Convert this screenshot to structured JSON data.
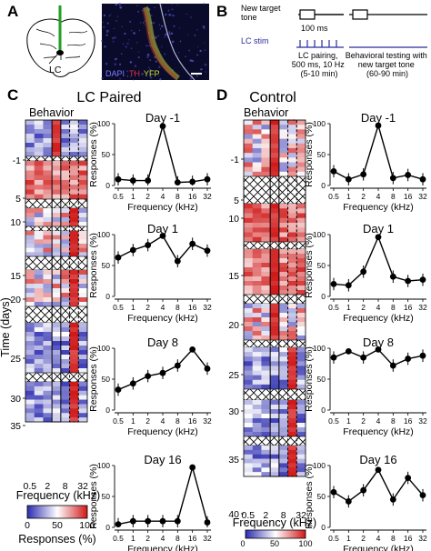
{
  "panel_labels": [
    "A",
    "B",
    "C",
    "D"
  ],
  "panel_a": {
    "region_label": "LC",
    "stain_labels": [
      "DAPI",
      "TH",
      "YFP"
    ],
    "stain_colors": [
      "#6a6aff",
      "#e83030",
      "#c8e030"
    ]
  },
  "panel_b": {
    "target_tone_label": "New target\ntone",
    "duration_label": "100 ms",
    "stim_label": "LC stim",
    "pairing_label": "LC pairing,\n500 ms, 10 Hz\n(5-10 min)",
    "testing_label": "Behavioral testing with\nnew target tone\n(60-90 min)",
    "stim_color": "#2a2a9c"
  },
  "panel_c": {
    "title": "LC Paired",
    "heatmap_label": "Behavior",
    "y_axis_label": "Time (days)",
    "y_ticks": [
      "-1",
      "5",
      "10",
      "15",
      "20",
      "25",
      "30",
      "35"
    ],
    "x_ticks": [
      "0.5",
      "2",
      "8",
      "32"
    ],
    "x_axis_label": "Frequency (kHz)",
    "colorbar_ticks": [
      "0",
      "50",
      "100"
    ],
    "colorbar_label": "Responses (%)"
  },
  "panel_d": {
    "title": "Control",
    "heatmap_label": "Behavior",
    "y_ticks": [
      "-1",
      "5",
      "10",
      "15",
      "20",
      "25",
      "30",
      "35",
      "40"
    ],
    "x_ticks": [
      "0.5",
      "2",
      "8",
      "32"
    ],
    "x_axis_label": "Frequency (kHz)",
    "colorbar_ticks": [
      "0",
      "50",
      "100"
    ],
    "colorbar_label": "Responses (%)"
  },
  "chart_data": [
    {
      "type": "line",
      "panel": "C",
      "title": "Day -1",
      "xlabel": "Frequency (kHz)",
      "ylabel": "Responses (%)",
      "categories": [
        "0.5",
        "1",
        "2",
        "4",
        "8",
        "16",
        "32"
      ],
      "values": [
        10,
        8,
        8,
        96,
        5,
        6,
        10
      ],
      "ylim": [
        0,
        100
      ],
      "y_ticks": [
        "0",
        "50",
        "100"
      ]
    },
    {
      "type": "line",
      "panel": "C",
      "title": "Day 1",
      "xlabel": "Frequency (kHz)",
      "ylabel": "Responses (%)",
      "categories": [
        "0.5",
        "1",
        "2",
        "4",
        "8",
        "16",
        "32"
      ],
      "values": [
        63,
        75,
        83,
        98,
        57,
        85,
        74
      ],
      "ylim": [
        0,
        100
      ],
      "y_ticks": [
        "0",
        "50",
        "100"
      ]
    },
    {
      "type": "line",
      "panel": "C",
      "title": "Day 8",
      "xlabel": "Frequency (kHz)",
      "ylabel": "Responses (%)",
      "categories": [
        "0.5",
        "1",
        "2",
        "4",
        "8",
        "16",
        "32"
      ],
      "values": [
        33,
        43,
        55,
        60,
        72,
        98,
        67
      ],
      "ylim": [
        0,
        100
      ],
      "y_ticks": [
        "0",
        "50",
        "100"
      ]
    },
    {
      "type": "line",
      "panel": "C",
      "title": "Day 16",
      "xlabel": "Frequency (kHz)",
      "ylabel": "Responses (%)",
      "categories": [
        "0.5",
        "1",
        "2",
        "4",
        "8",
        "16",
        "32"
      ],
      "values": [
        5,
        10,
        10,
        10,
        10,
        97,
        8
      ],
      "ylim": [
        0,
        100
      ],
      "y_ticks": [
        "0",
        "50",
        "100"
      ]
    },
    {
      "type": "line",
      "panel": "D",
      "title": "Day -1",
      "xlabel": "Frequency (kHz)",
      "ylabel": "Responses (%)",
      "categories": [
        "0.5",
        "1",
        "2",
        "4",
        "8",
        "16",
        "32"
      ],
      "values": [
        23,
        10,
        18,
        97,
        12,
        17,
        10
      ],
      "ylim": [
        0,
        100
      ],
      "y_ticks": [
        "0",
        "50",
        "100"
      ]
    },
    {
      "type": "line",
      "panel": "D",
      "title": "Day 1",
      "xlabel": "Frequency (kHz)",
      "ylabel": "Responses (%)",
      "categories": [
        "0.5",
        "1",
        "2",
        "4",
        "8",
        "16",
        "32"
      ],
      "values": [
        20,
        18,
        40,
        96,
        32,
        25,
        27
      ],
      "ylim": [
        0,
        100
      ],
      "y_ticks": [
        "0",
        "50",
        "100"
      ]
    },
    {
      "type": "line",
      "panel": "D",
      "title": "Day 8",
      "xlabel": "Frequency (kHz)",
      "ylabel": "Responses (%)",
      "categories": [
        "0.5",
        "1",
        "2",
        "4",
        "8",
        "16",
        "32"
      ],
      "values": [
        85,
        95,
        85,
        98,
        72,
        83,
        88
      ],
      "ylim": [
        0,
        100
      ],
      "y_ticks": [
        "0",
        "50",
        "100"
      ]
    },
    {
      "type": "line",
      "panel": "D",
      "title": "Day 16",
      "xlabel": "Frequency (kHz)",
      "ylabel": "Responses (%)",
      "categories": [
        "0.5",
        "1",
        "2",
        "4",
        "8",
        "16",
        "32"
      ],
      "values": [
        57,
        42,
        60,
        93,
        45,
        80,
        52
      ],
      "ylim": [
        0,
        100
      ],
      "y_ticks": [
        "0",
        "50",
        "100"
      ]
    }
  ]
}
